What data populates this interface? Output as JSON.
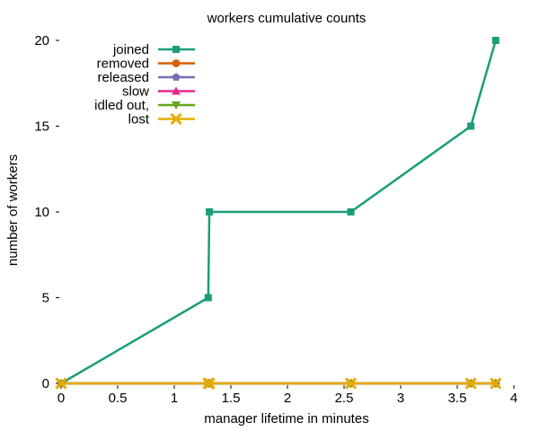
{
  "chart_data": {
    "type": "line",
    "title": "workers cumulative counts",
    "xlabel": "manager lifetime in minutes",
    "ylabel": "number of workers",
    "xlim": [
      0,
      4
    ],
    "ylim": [
      0,
      20
    ],
    "x_ticks": [
      "0",
      "0.5",
      "1",
      "1.5",
      "2",
      "2.5",
      "3",
      "3.5",
      "4"
    ],
    "y_ticks": [
      "0",
      "5",
      "10",
      "15",
      "20"
    ],
    "x_tick_values": [
      0,
      0.5,
      1,
      1.5,
      2,
      2.5,
      3,
      3.5,
      4
    ],
    "y_tick_values": [
      0,
      5,
      10,
      15,
      20
    ],
    "grid": false,
    "legend_position": "top-left",
    "series": [
      {
        "name": "joined",
        "color": "#1b9e77",
        "marker": "square",
        "x": [
          0,
          1.3,
          1.31,
          2.56,
          3.62,
          3.84
        ],
        "y": [
          0,
          5,
          10,
          10,
          15,
          20
        ]
      },
      {
        "name": "removed",
        "color": "#d95f02",
        "marker": "circle",
        "x": [
          0,
          1.3,
          1.31,
          2.56,
          3.62,
          3.84
        ],
        "y": [
          0,
          0,
          0,
          0,
          0,
          0
        ]
      },
      {
        "name": "released",
        "color": "#7570b3",
        "marker": "pentagon",
        "x": [
          0,
          1.3,
          1.31,
          2.56,
          3.62,
          3.84
        ],
        "y": [
          0,
          0,
          0,
          0,
          0,
          0
        ]
      },
      {
        "name": "slow",
        "color": "#e7298a",
        "marker": "triangle-up",
        "x": [
          0,
          1.3,
          1.31,
          2.56,
          3.62,
          3.84
        ],
        "y": [
          0,
          0,
          0,
          0,
          0,
          0
        ]
      },
      {
        "name": "idled out,",
        "color": "#66a61e",
        "marker": "triangle-down",
        "x": [
          0,
          1.3,
          1.31,
          2.56,
          3.62,
          3.84
        ],
        "y": [
          0,
          0,
          0,
          0,
          0,
          0
        ]
      },
      {
        "name": "lost",
        "color": "#e6ab02",
        "marker": "x",
        "x": [
          0,
          1.3,
          1.31,
          2.56,
          3.62,
          3.84
        ],
        "y": [
          0,
          0,
          0,
          0,
          0,
          0
        ]
      }
    ]
  }
}
